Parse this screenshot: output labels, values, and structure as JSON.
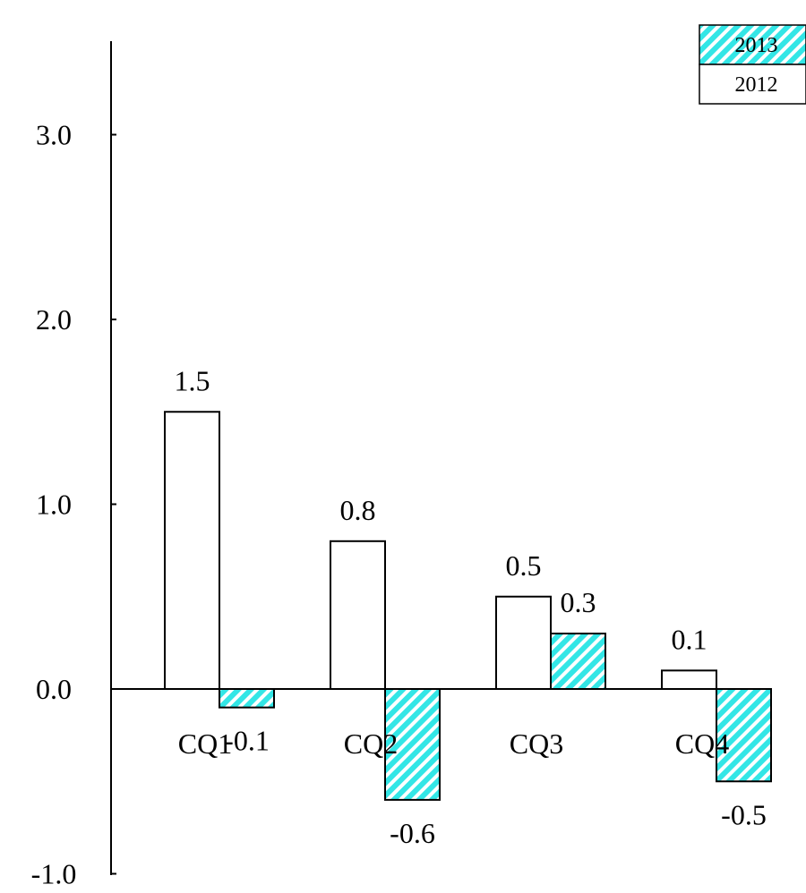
{
  "chart_data": {
    "type": "bar",
    "title": "",
    "xlabel": "",
    "ylabel": "",
    "categories": [
      "CQ1",
      "CQ2",
      "CQ3",
      "CQ4"
    ],
    "series": [
      {
        "name": "2012",
        "values": [
          1.5,
          0.8,
          0.5,
          0.1
        ],
        "labels": [
          "1.5",
          "0.8",
          "0.5",
          "0.1"
        ],
        "fill": "#ffffff",
        "pattern": "none"
      },
      {
        "name": "2013",
        "values": [
          -0.1,
          -0.6,
          0.3,
          -0.5
        ],
        "labels": [
          "-0.1",
          "-0.6",
          "0.3",
          "-0.5"
        ],
        "fill": "#33e6e6",
        "pattern": "diagonal-hatch"
      }
    ],
    "ylim": [
      -1.0,
      3.0
    ],
    "yticks": [
      -1.0,
      0.0,
      1.0,
      2.0,
      3.0
    ],
    "ytick_labels": [
      "-1.0",
      "0.0",
      "1.0",
      "2.0",
      "3.0"
    ],
    "grid": false,
    "legend_position": "top-right",
    "legend": [
      "2013",
      "2012"
    ]
  }
}
